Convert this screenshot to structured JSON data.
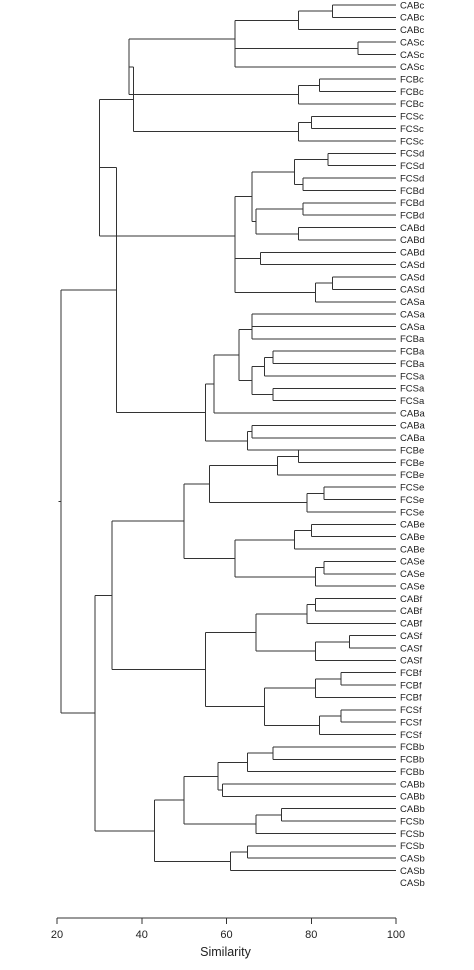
{
  "chart_data": {
    "type": "dendrogram",
    "xlabel": "Similarity",
    "xlim": [
      20,
      100
    ],
    "xticks": [
      20,
      40,
      60,
      80,
      100
    ],
    "leaves": [
      "CABc",
      "CABc",
      "CABc",
      "CASc",
      "CASc",
      "CASc",
      "FCBc",
      "FCBc",
      "FCBc",
      "FCSc",
      "FCSc",
      "FCSc",
      "FCSd",
      "FCSd",
      "FCSd",
      "FCBd",
      "FCBd",
      "FCBd",
      "CABd",
      "CABd",
      "CABd",
      "CASd",
      "CASd",
      "CASd",
      "CASa",
      "CASa",
      "CASa",
      "FCBa",
      "FCBa",
      "FCBa",
      "FCSa",
      "FCSa",
      "FCSa",
      "CABa",
      "CABa",
      "CABa",
      "FCBe",
      "FCBe",
      "FCBe",
      "FCSe",
      "FCSe",
      "FCSe",
      "CABe",
      "CABe",
      "CABe",
      "CASe",
      "CASe",
      "CASe",
      "CABf",
      "CABf",
      "CABf",
      "CASf",
      "CASf",
      "CASf",
      "FCBf",
      "FCBf",
      "FCBf",
      "FCSf",
      "FCSf",
      "FCSf",
      "FCBb",
      "FCBb",
      "FCBb",
      "CABb",
      "CABb",
      "CABb",
      "FCSb",
      "FCSb",
      "FCSb",
      "CASb",
      "CASb",
      "CASb"
    ],
    "tree": [
      "21",
      [
        "34",
        [
          "34",
          [
            "30",
            [
              "38",
              [
                "37",
                [
                  "62",
                  [
                    "77",
                    [
                      "85",
                      0,
                      1
                    ],
                    2
                  ],
                  [
                    "62",
                    [
                      "91",
                      3,
                      4
                    ],
                    5
                  ]
                ],
                [
                  "77",
                  [
                    "82",
                    6,
                    7
                  ],
                  8
                ]
              ],
              [
                "77",
                [
                  "80",
                  9,
                  10
                ],
                11
              ]
            ],
            [
              "62",
              [
                "66",
                [
                  "76",
                  [
                    "84",
                    12,
                    13
                  ],
                  [
                    "78",
                    14,
                    15
                  ]
                ],
                [
                  "67",
                  [
                    "78",
                    16,
                    17
                  ],
                  [
                    "77",
                    18,
                    19
                  ]
                ]
              ],
              [
                "62",
                [
                  "68",
                  20,
                  21
                ],
                [
                  "81",
                  [
                    "85",
                    22,
                    23
                  ],
                  24
                ]
              ]
            ]
          ],
          [
            "55",
            [
              "57",
              [
                "63",
                [
                  "66",
                  [
                    "66",
                    25,
                    26
                  ],
                  27
                ],
                [
                  "66",
                  [
                    "69",
                    [
                      "71",
                      28,
                      29
                    ],
                    30
                  ],
                  [
                    "71",
                    31,
                    32
                  ]
                ]
              ],
              33
            ],
            [
              "65",
              [
                "66",
                34,
                35
              ],
              36
            ]
          ]
        ]
      ],
      [
        "29",
        [
          "33",
          [
            "50",
            [
              "56",
              [
                "72",
                [
                  "77",
                  0,
                  0
                ],
                0
              ],
              [
                "79",
                [
                  "83",
                  0,
                  0
                ],
                0
              ]
            ],
            [
              "62",
              [
                "76",
                [
                  "80",
                  0,
                  0
                ],
                0
              ],
              [
                "81",
                [
                  "83",
                  0,
                  0
                ],
                0
              ]
            ]
          ],
          [
            "55",
            [
              "67",
              [
                "79",
                [
                  "81",
                  0,
                  0
                ],
                0
              ],
              [
                "81",
                [
                  "89",
                  0,
                  0
                ],
                0
              ]
            ],
            [
              "69",
              [
                "81",
                [
                  "87",
                  0,
                  0
                ],
                0
              ],
              [
                "82",
                [
                  "87",
                  0,
                  0
                ],
                0
              ]
            ]
          ]
        ],
        [
          "43",
          [
            "50",
            [
              "58",
              [
                "65",
                [
                  "71",
                  0,
                  0
                ],
                0
              ],
              [
                "59",
                0,
                0
              ]
            ],
            [
              "67",
              [
                "73",
                0,
                0
              ],
              0
            ]
          ],
          [
            "61",
            [
              "65",
              0,
              0
            ],
            0
          ]
        ]
      ]
    ]
  }
}
